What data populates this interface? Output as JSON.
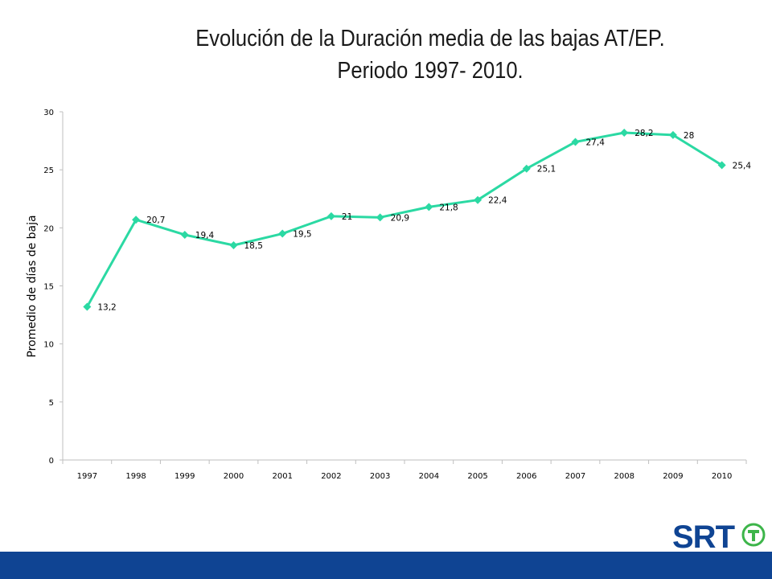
{
  "title": {
    "line1": "Evolución de la Duración media  de las bajas AT/EP.",
    "line2": "Periodo  1997- 2010."
  },
  "chart_data": {
    "type": "line",
    "ylabel": "Promedio de días de baja",
    "xlabel": "",
    "ylim": [
      0,
      30
    ],
    "yticks": [
      0,
      5,
      10,
      15,
      20,
      25,
      30
    ],
    "categories": [
      "1997",
      "1998",
      "1999",
      "2000",
      "2001",
      "2002",
      "2003",
      "2004",
      "2005",
      "2006",
      "2007",
      "2008",
      "2009",
      "2010"
    ],
    "values": [
      13.2,
      20.7,
      19.4,
      18.5,
      19.5,
      21,
      20.9,
      21.8,
      22.4,
      25.1,
      27.4,
      28.2,
      28,
      25.4
    ],
    "data_labels": [
      "13,2",
      "20,7",
      "19,4",
      "18,5",
      "19,5",
      "21",
      "20,9",
      "21,8",
      "22,4",
      "25,1",
      "27,4",
      "28,2",
      "28",
      "25,4"
    ],
    "grid": false,
    "legend": "none",
    "line_color": "#2bd9a3",
    "marker": "diamond"
  },
  "logo": {
    "text": "SRT",
    "color": "#0f4493",
    "accent_color": "#3db54a"
  },
  "footer": {
    "color": "#0f4493"
  }
}
